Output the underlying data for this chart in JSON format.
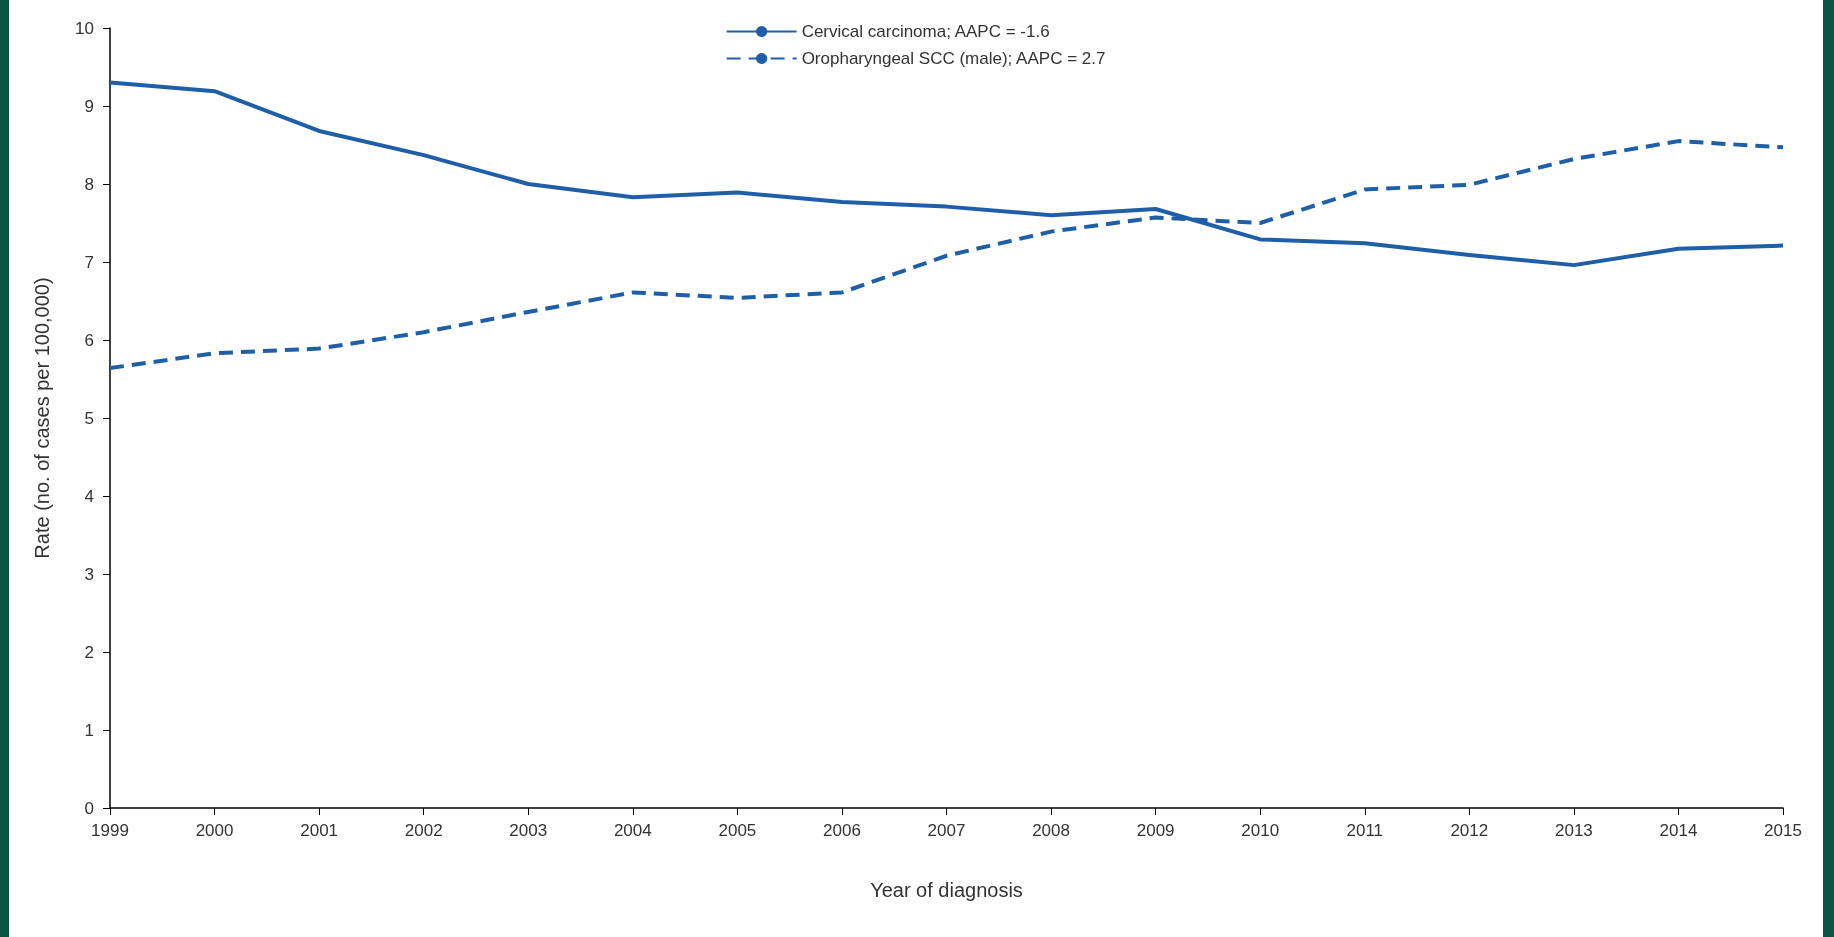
{
  "chart_data": {
    "type": "line",
    "xlabel": "Year of diagnosis",
    "ylabel": "Rate (no. of cases per 100,000)",
    "categories": [
      "1999",
      "2000",
      "2001",
      "2002",
      "2003",
      "2004",
      "2005",
      "2006",
      "2007",
      "2008",
      "2009",
      "2010",
      "2011",
      "2012",
      "2013",
      "2014",
      "2015"
    ],
    "series": [
      {
        "name": "Cervical carcinoma; AAPC = -1.6",
        "color": "#1f5fa8",
        "line_style": "solid",
        "values": [
          9.3,
          9.19,
          8.68,
          8.37,
          8.0,
          7.83,
          7.89,
          7.77,
          7.71,
          7.6,
          7.68,
          7.29,
          7.24,
          7.09,
          6.96,
          7.17,
          7.21
        ]
      },
      {
        "name": "Oropharyngeal SCC (male); AAPC = 2.7",
        "color": "#1f5fa8",
        "line_style": "dashed",
        "values": [
          5.64,
          5.83,
          5.89,
          6.1,
          6.36,
          6.61,
          6.54,
          6.61,
          7.08,
          7.39,
          7.57,
          7.5,
          7.93,
          7.99,
          8.32,
          8.55,
          8.47
        ]
      }
    ],
    "ylim": [
      0,
      10
    ],
    "yticks": [
      0,
      1,
      2,
      3,
      4,
      5,
      6,
      7,
      8,
      9,
      10
    ],
    "grid": false,
    "legend": "top",
    "marker": "none"
  }
}
